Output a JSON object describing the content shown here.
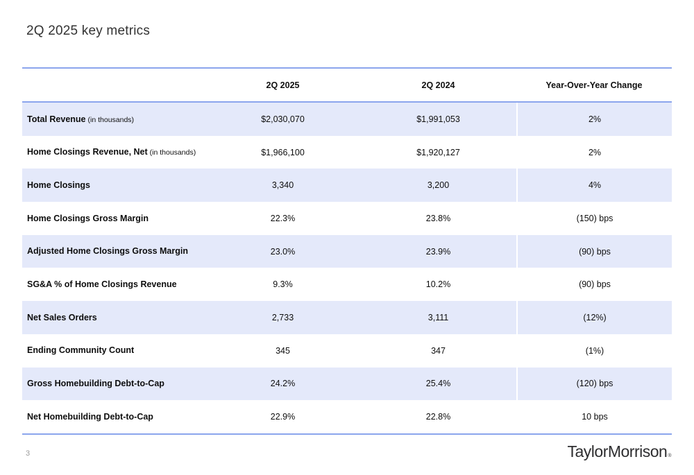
{
  "page": {
    "title": "2Q 2025 key metrics",
    "page_number": "3",
    "logo_text": "TaylorMorrison",
    "logo_mark": "®"
  },
  "colors": {
    "accent_line": "#8ba5ed",
    "row_shade": "#e4e9fa"
  },
  "table": {
    "columns": [
      "",
      "2Q 2025",
      "2Q 2024",
      "Year-Over-Year Change"
    ],
    "rows": [
      {
        "label": "Total Revenue",
        "note": "(in thousands)",
        "q2_2025": "$2,030,070",
        "q2_2024": "$1,991,053",
        "yoy": "2%"
      },
      {
        "label": "Home Closings Revenue, Net",
        "note": "(in thousands)",
        "q2_2025": "$1,966,100",
        "q2_2024": "$1,920,127",
        "yoy": "2%"
      },
      {
        "label": "Home Closings",
        "note": "",
        "q2_2025": "3,340",
        "q2_2024": "3,200",
        "yoy": "4%"
      },
      {
        "label": "Home Closings Gross Margin",
        "note": "",
        "q2_2025": "22.3%",
        "q2_2024": "23.8%",
        "yoy": "(150) bps"
      },
      {
        "label": "Adjusted Home Closings Gross Margin",
        "note": "",
        "q2_2025": "23.0%",
        "q2_2024": "23.9%",
        "yoy": "(90) bps"
      },
      {
        "label": "SG&A % of Home Closings Revenue",
        "note": "",
        "q2_2025": "9.3%",
        "q2_2024": "10.2%",
        "yoy": "(90) bps"
      },
      {
        "label": "Net Sales Orders",
        "note": "",
        "q2_2025": "2,733",
        "q2_2024": "3,111",
        "yoy": "(12%)"
      },
      {
        "label": "Ending Community Count",
        "note": "",
        "q2_2025": "345",
        "q2_2024": "347",
        "yoy": "(1%)"
      },
      {
        "label": "Gross Homebuilding Debt-to-Cap",
        "note": "",
        "q2_2025": "24.2%",
        "q2_2024": "25.4%",
        "yoy": "(120) bps"
      },
      {
        "label": "Net Homebuilding Debt-to-Cap",
        "note": "",
        "q2_2025": "22.9%",
        "q2_2024": "22.8%",
        "yoy": "10 bps"
      }
    ]
  }
}
